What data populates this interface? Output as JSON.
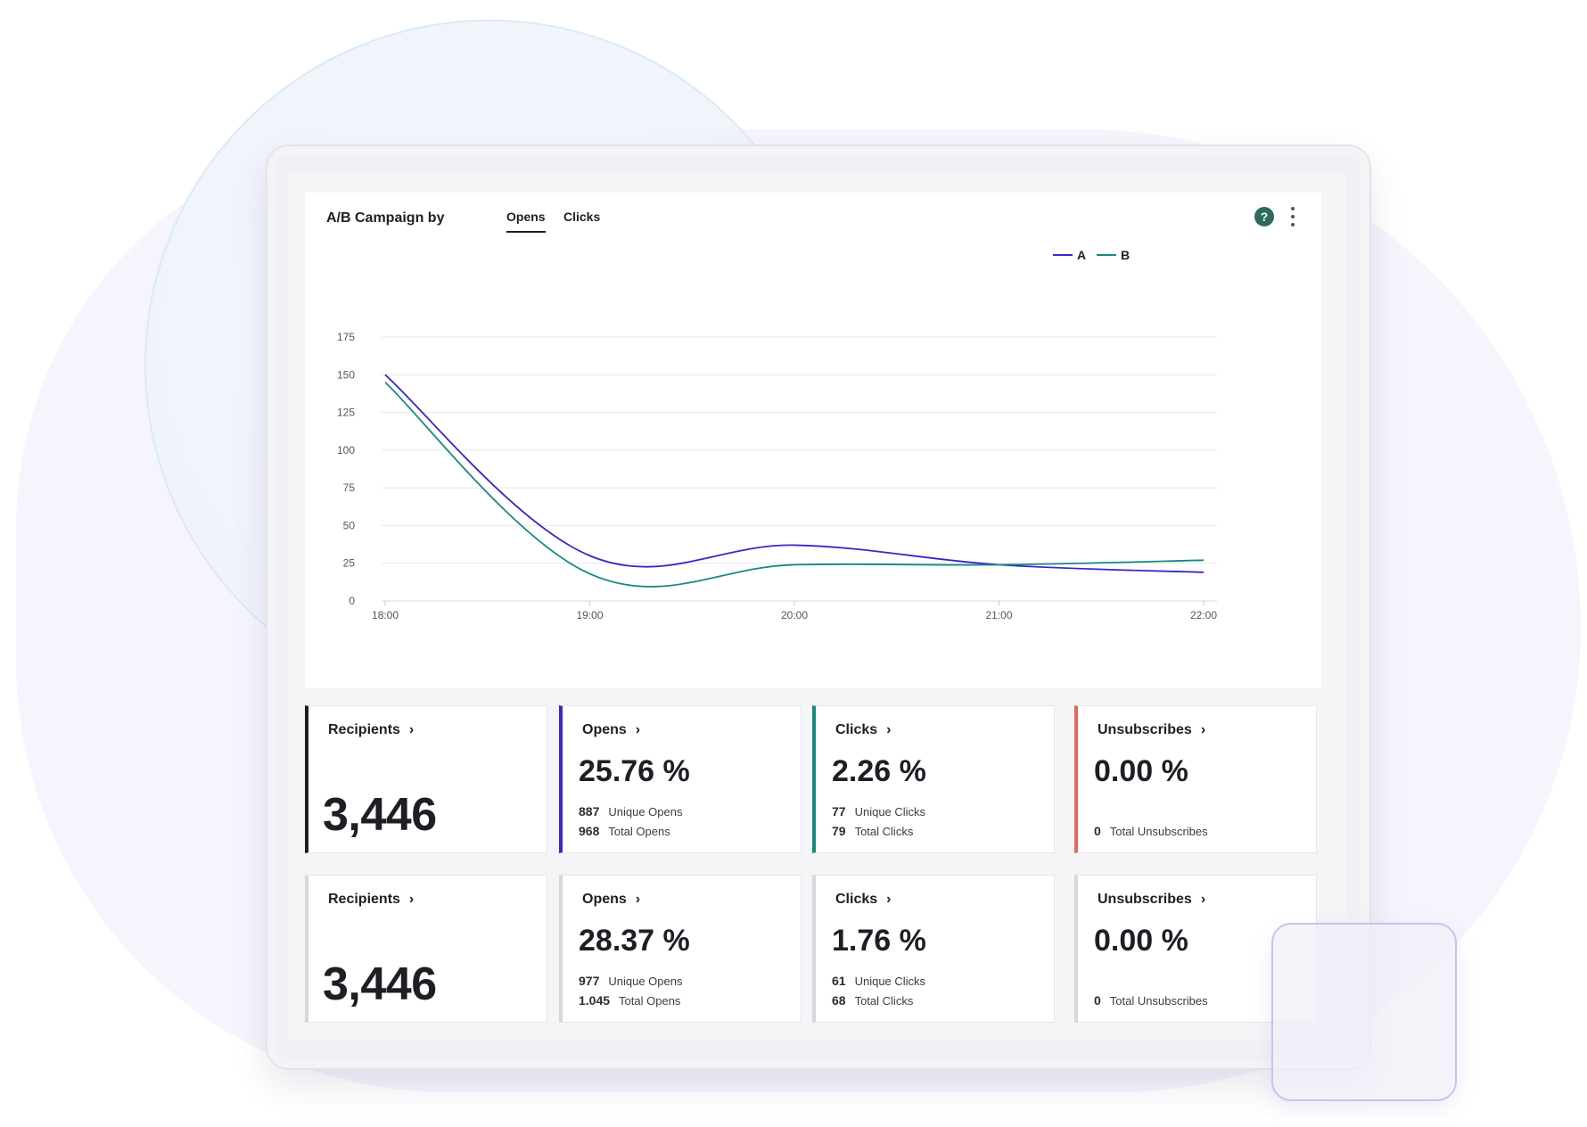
{
  "header": {
    "title": "A/B Campaign by",
    "tabs": [
      {
        "label": "Opens",
        "active": true
      },
      {
        "label": "Clicks",
        "active": false
      }
    ],
    "help_symbol": "?",
    "icons": [
      "help-icon",
      "kebab-menu-icon"
    ]
  },
  "colors": {
    "series_a": "#3b27c4",
    "series_b": "#178a80",
    "recipients_accent": "#1e1e24",
    "opens_accent": "#3b27c4",
    "clicks_accent": "#178a80",
    "unsubscribes_accent": "#e06a60",
    "inactive_accent": "#d7d7dc"
  },
  "chart_data": {
    "type": "line",
    "title": "",
    "xlabel": "",
    "ylabel": "",
    "x": [
      "18:00",
      "19:00",
      "20:00",
      "21:00",
      "22:00"
    ],
    "ylim": [
      0,
      175
    ],
    "yticks": [
      0,
      25,
      50,
      75,
      100,
      125,
      150,
      175
    ],
    "grid": true,
    "legend": "top-right",
    "series": [
      {
        "name": "A",
        "values": [
          150,
          30,
          37,
          24,
          19
        ]
      },
      {
        "name": "B",
        "values": [
          145,
          18,
          24,
          24,
          27
        ]
      }
    ]
  },
  "stats": [
    [
      {
        "kind": "recipients",
        "label": "Recipients",
        "value": "3,446"
      },
      {
        "kind": "opens",
        "label": "Opens",
        "value": "25.76 %",
        "rows": [
          {
            "num": "887",
            "text": "Unique Opens"
          },
          {
            "num": "968",
            "text": "Total Opens"
          }
        ]
      },
      {
        "kind": "clicks",
        "label": "Clicks",
        "value": "2.26 %",
        "rows": [
          {
            "num": "77",
            "text": "Unique Clicks"
          },
          {
            "num": "79",
            "text": "Total Clicks"
          }
        ]
      },
      {
        "kind": "unsubscribes",
        "label": "Unsubscribes",
        "value": "0.00 %",
        "rows": [
          {
            "num": "0",
            "text": "Total Unsubscribes"
          }
        ]
      }
    ],
    [
      {
        "kind": "recipients",
        "label": "Recipients",
        "value": "3,446"
      },
      {
        "kind": "opens",
        "label": "Opens",
        "value": "28.37 %",
        "rows": [
          {
            "num": "977",
            "text": "Unique Opens"
          },
          {
            "num": "1.045",
            "text": "Total Opens"
          }
        ]
      },
      {
        "kind": "clicks",
        "label": "Clicks",
        "value": "1.76 %",
        "rows": [
          {
            "num": "61",
            "text": "Unique Clicks"
          },
          {
            "num": "68",
            "text": "Total Clicks"
          }
        ]
      },
      {
        "kind": "unsubscribes",
        "label": "Unsubscribes",
        "value": "0.00 %",
        "rows": [
          {
            "num": "0",
            "text": "Total Unsubscribes"
          }
        ]
      }
    ]
  ]
}
